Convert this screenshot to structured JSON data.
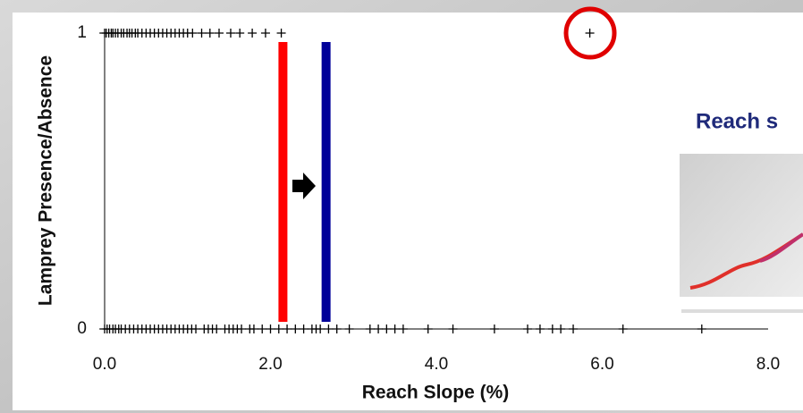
{
  "inset": {
    "title": "Reach s"
  },
  "chart_data": {
    "type": "scatter",
    "x_label": "Reach Slope (%)",
    "y_label": "Lamprey Presence/Absence",
    "xlim": [
      0,
      8
    ],
    "ylim": [
      0,
      1
    ],
    "xticks": [
      {
        "value": 0,
        "label": "0.0"
      },
      {
        "value": 2,
        "label": "2.0"
      },
      {
        "value": 4,
        "label": "4.0"
      },
      {
        "value": 6,
        "label": "6.0"
      },
      {
        "value": 8,
        "label": "8.0"
      }
    ],
    "yticks": [
      0,
      1
    ],
    "marker": "+",
    "series": [
      {
        "color": "#000000",
        "x": [
          0.0,
          0.02,
          0.05,
          0.08,
          0.1,
          0.13,
          0.16,
          0.2,
          0.23,
          0.27,
          0.3,
          0.33,
          0.37,
          0.4,
          0.45,
          0.5,
          0.55,
          0.6,
          0.65,
          0.7,
          0.75,
          0.8,
          0.85,
          0.9,
          0.95,
          1.0,
          1.06,
          1.17,
          1.27,
          1.38,
          1.52,
          1.63,
          1.78,
          1.94,
          2.13,
          5.85
        ],
        "values": [
          1,
          1,
          1,
          1,
          1,
          1,
          1,
          1,
          1,
          1,
          1,
          1,
          1,
          1,
          1,
          1,
          1,
          1,
          1,
          1,
          1,
          1,
          1,
          1,
          1,
          1,
          1,
          1,
          1,
          1,
          1,
          1,
          1,
          1,
          1,
          1
        ]
      },
      {
        "color": "#000000",
        "x": [
          0.0,
          0.03,
          0.06,
          0.1,
          0.13,
          0.17,
          0.2,
          0.25,
          0.3,
          0.35,
          0.4,
          0.45,
          0.5,
          0.55,
          0.6,
          0.65,
          0.7,
          0.75,
          0.8,
          0.85,
          0.9,
          0.95,
          1.0,
          1.05,
          1.1,
          1.2,
          1.25,
          1.3,
          1.35,
          1.45,
          1.5,
          1.55,
          1.6,
          1.65,
          1.75,
          1.8,
          1.9,
          2.0,
          2.1,
          2.2,
          2.3,
          2.4,
          2.5,
          2.55,
          2.6,
          2.7,
          2.8,
          2.95,
          3.2,
          3.3,
          3.4,
          3.5,
          3.6,
          3.9,
          4.2,
          4.7,
          5.1,
          5.25,
          5.4,
          5.5,
          5.65,
          6.25,
          7.2
        ],
        "values": [
          0,
          0,
          0,
          0,
          0,
          0,
          0,
          0,
          0,
          0,
          0,
          0,
          0,
          0,
          0,
          0,
          0,
          0,
          0,
          0,
          0,
          0,
          0,
          0,
          0,
          0,
          0,
          0,
          0,
          0,
          0,
          0,
          0,
          0,
          0,
          0,
          0,
          0,
          0,
          0,
          0,
          0,
          0,
          0,
          0,
          0,
          0,
          0,
          0,
          0,
          0,
          0,
          0,
          0,
          0,
          0,
          0,
          0,
          0,
          0,
          0,
          0,
          0
        ]
      }
    ],
    "vlines": [
      {
        "value": 2.15,
        "color": "#ff0000"
      },
      {
        "value": 2.67,
        "color": "#000099"
      }
    ]
  }
}
